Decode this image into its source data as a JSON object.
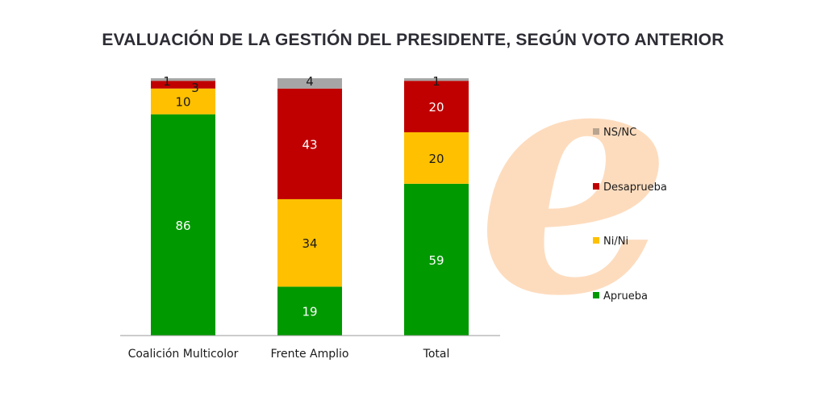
{
  "chart_data": {
    "type": "bar",
    "stacked": true,
    "title": "EVALUACIÓN DE LA GESTIÓN DEL PRESIDENTE, SEGÚN VOTO ANTERIOR",
    "xlabel": "",
    "ylabel": "",
    "ylim": [
      0,
      100
    ],
    "grid": false,
    "legend_position": "right",
    "categories": [
      "Coalición Multicolor",
      "Frente Amplio",
      "Total"
    ],
    "series": [
      {
        "name": "Aprueba",
        "color": "#009900",
        "values": [
          86,
          19,
          59
        ],
        "label_color": "#ffffff"
      },
      {
        "name": "Ni/Ni",
        "color": "#ffc000",
        "values": [
          10,
          34,
          20
        ],
        "label_color": "#1a1a1a"
      },
      {
        "name": "Desaprueba",
        "color": "#c00000",
        "values": [
          3,
          43,
          20
        ],
        "label_color": "#ffffff"
      },
      {
        "name": "NS/NC",
        "color": "#a6a6a6",
        "values": [
          1,
          4,
          1
        ],
        "label_color": "#1a1a1a"
      }
    ],
    "legend_order": [
      "NS/NC",
      "Desaprueba",
      "Ni/Ni",
      "Aprueba"
    ]
  },
  "watermark": {
    "glyph": "e",
    "color": "#fddcbe"
  }
}
